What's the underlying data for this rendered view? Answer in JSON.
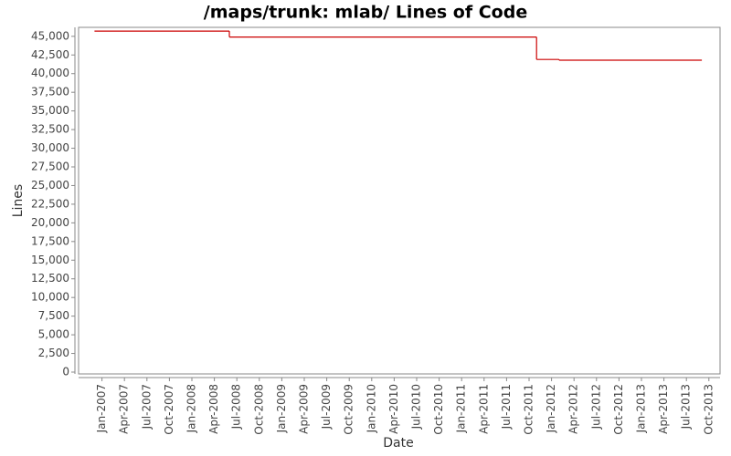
{
  "chart_data": {
    "type": "line",
    "step": "post",
    "title": "/maps/trunk: mlab/ Lines of Code",
    "xlabel": "Date",
    "ylabel": "Lines",
    "x": [
      "2006-12",
      "2008-06",
      "2011-11",
      "2012-02",
      "2013-09"
    ],
    "series": [
      {
        "name": "Lines",
        "color": "#cc0000",
        "values": [
          45700,
          44900,
          41900,
          41800,
          41800
        ]
      }
    ],
    "xlim": [
      "2006-10",
      "2013-11"
    ],
    "xticks": [
      {
        "value": "2007-01",
        "label": "Jan-2007"
      },
      {
        "value": "2007-04",
        "label": "Apr-2007"
      },
      {
        "value": "2007-07",
        "label": "Jul-2007"
      },
      {
        "value": "2007-10",
        "label": "Oct-2007"
      },
      {
        "value": "2008-01",
        "label": "Jan-2008"
      },
      {
        "value": "2008-04",
        "label": "Apr-2008"
      },
      {
        "value": "2008-07",
        "label": "Jul-2008"
      },
      {
        "value": "2008-10",
        "label": "Oct-2008"
      },
      {
        "value": "2009-01",
        "label": "Jan-2009"
      },
      {
        "value": "2009-04",
        "label": "Apr-2009"
      },
      {
        "value": "2009-07",
        "label": "Jul-2009"
      },
      {
        "value": "2009-10",
        "label": "Oct-2009"
      },
      {
        "value": "2010-01",
        "label": "Jan-2010"
      },
      {
        "value": "2010-04",
        "label": "Apr-2010"
      },
      {
        "value": "2010-07",
        "label": "Jul-2010"
      },
      {
        "value": "2010-10",
        "label": "Oct-2010"
      },
      {
        "value": "2011-01",
        "label": "Jan-2011"
      },
      {
        "value": "2011-04",
        "label": "Apr-2011"
      },
      {
        "value": "2011-07",
        "label": "Jul-2011"
      },
      {
        "value": "2011-10",
        "label": "Oct-2011"
      },
      {
        "value": "2012-01",
        "label": "Jan-2012"
      },
      {
        "value": "2012-04",
        "label": "Apr-2012"
      },
      {
        "value": "2012-07",
        "label": "Jul-2012"
      },
      {
        "value": "2012-10",
        "label": "Oct-2012"
      },
      {
        "value": "2013-01",
        "label": "Jan-2013"
      },
      {
        "value": "2013-04",
        "label": "Apr-2013"
      },
      {
        "value": "2013-07",
        "label": "Jul-2013"
      },
      {
        "value": "2013-10",
        "label": "Oct-2013"
      }
    ],
    "ylim": [
      0,
      46200
    ],
    "yticks": [
      0,
      {
        "value": 2500,
        "label": "2,500"
      },
      {
        "value": 5000,
        "label": "5,000"
      },
      {
        "value": 7500,
        "label": "7,500"
      },
      {
        "value": 10000,
        "label": "10,000"
      },
      {
        "value": 12500,
        "label": "12,500"
      },
      {
        "value": 15000,
        "label": "15,000"
      },
      {
        "value": 17500,
        "label": "17,500"
      },
      {
        "value": 20000,
        "label": "20,000"
      },
      {
        "value": 22500,
        "label": "22,500"
      },
      {
        "value": 25000,
        "label": "25,000"
      },
      {
        "value": 27500,
        "label": "27,500"
      },
      {
        "value": 30000,
        "label": "30,000"
      },
      {
        "value": 32500,
        "label": "32,500"
      },
      {
        "value": 35000,
        "label": "35,000"
      },
      {
        "value": 37500,
        "label": "37,500"
      },
      {
        "value": 40000,
        "label": "40,000"
      },
      {
        "value": 42500,
        "label": "42,500"
      },
      {
        "value": 45000,
        "label": "45,000"
      }
    ],
    "grid": false
  }
}
